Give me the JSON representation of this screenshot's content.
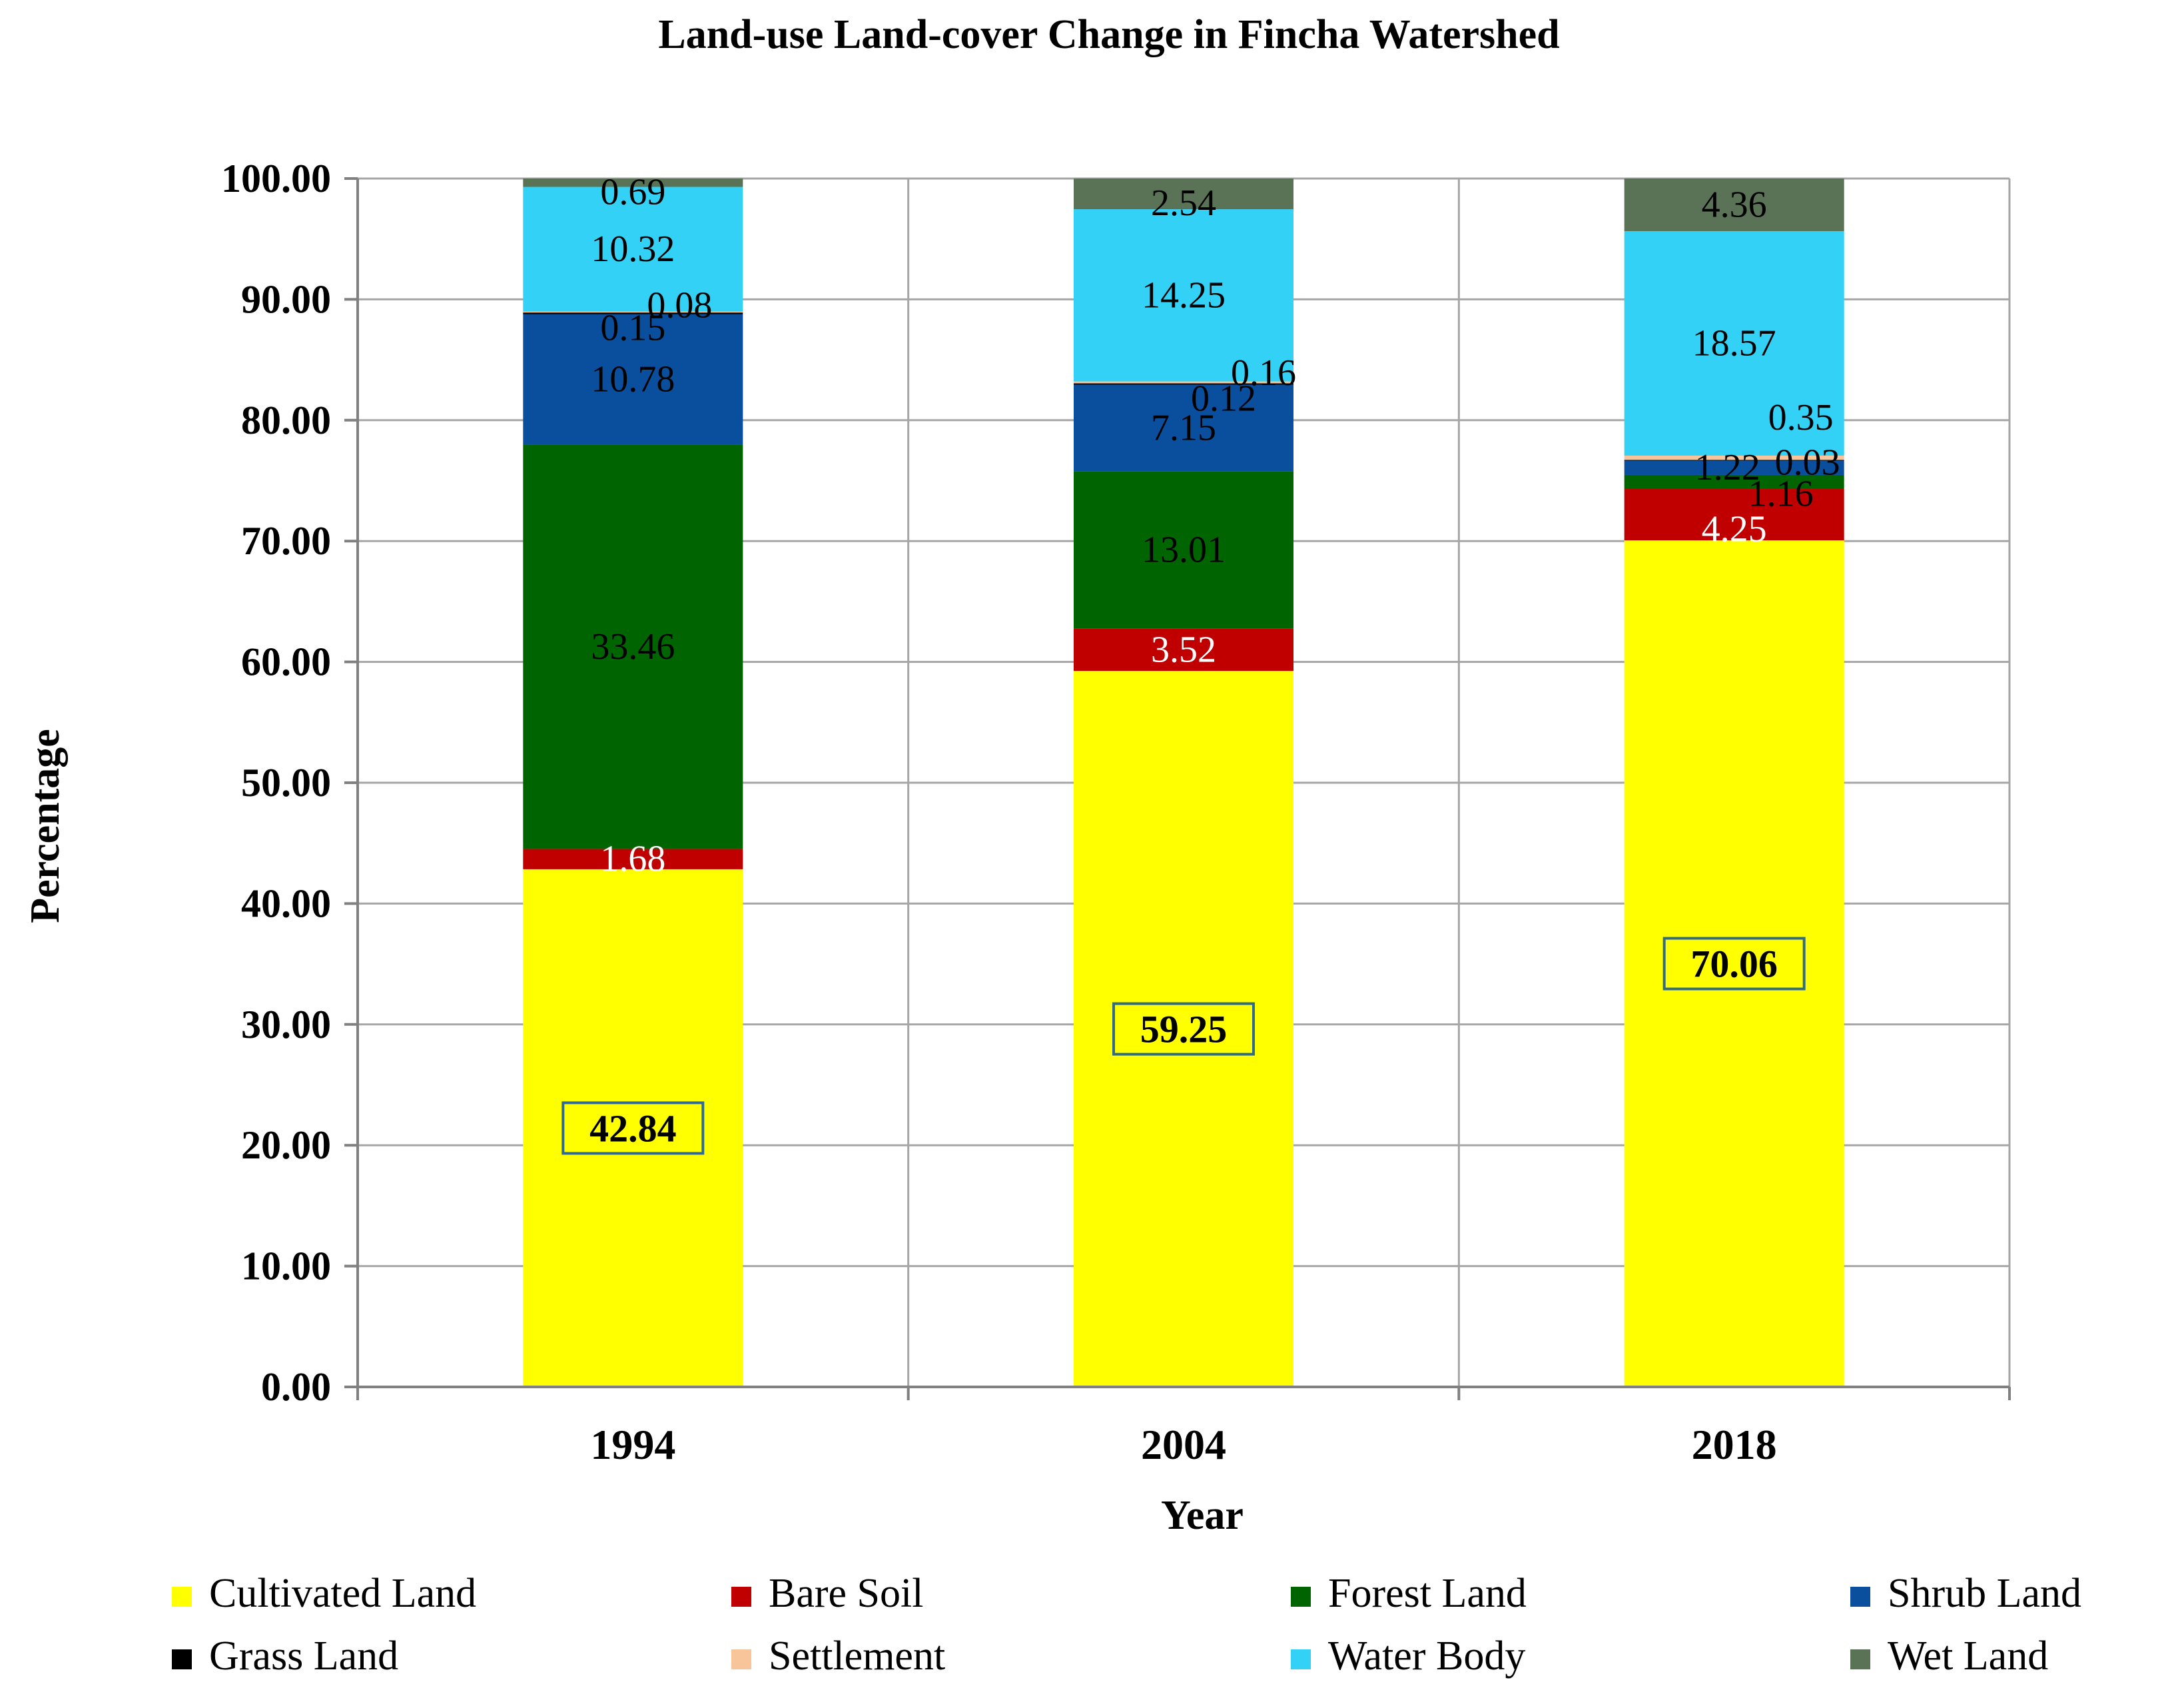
{
  "chart_data": {
    "type": "bar",
    "stacked": true,
    "title": "Land-use Land-cover Change in Fincha Watershed",
    "xlabel": "Year",
    "ylabel": "Percentage",
    "ylim": [
      0,
      100
    ],
    "yticks": [
      "0.00",
      "10.00",
      "20.00",
      "30.00",
      "40.00",
      "50.00",
      "60.00",
      "70.00",
      "80.00",
      "90.00",
      "100.00"
    ],
    "categories": [
      "1994",
      "2004",
      "2018"
    ],
    "series": [
      {
        "name": "Cultivated Land",
        "color": "#ffff00",
        "values": [
          42.84,
          59.25,
          70.06
        ],
        "labels": [
          "42.84",
          "59.25",
          "70.06"
        ],
        "label_color": "#000000"
      },
      {
        "name": "Bare Soil",
        "color": "#c00000",
        "values": [
          1.68,
          3.52,
          4.25
        ],
        "labels": [
          "1.68",
          "3.52",
          "4.25"
        ],
        "label_color": "#ffffff"
      },
      {
        "name": "Forest Land",
        "color": "#006400",
        "values": [
          33.46,
          13.01,
          1.16
        ],
        "labels": [
          "33.46",
          "13.01",
          "1.16"
        ],
        "label_color": "#000000"
      },
      {
        "name": "Shrub Land",
        "color": "#0a4f9e",
        "values": [
          10.78,
          7.15,
          1.22
        ],
        "labels": [
          "10.78",
          "7.15",
          "1.22"
        ],
        "label_color": "#000000"
      },
      {
        "name": "Grass Land",
        "color": "#000000",
        "values": [
          0.15,
          0.12,
          0.03
        ],
        "labels": [
          "0.15",
          "0.12",
          "0.03"
        ],
        "label_color": "#000000"
      },
      {
        "name": "Settlement",
        "color": "#f8c49a",
        "values": [
          0.08,
          0.16,
          0.35
        ],
        "labels": [
          "0.08",
          "0.16",
          "0.35"
        ],
        "label_color": "#000000"
      },
      {
        "name": "Water Body",
        "color": "#33d1f5",
        "values": [
          10.32,
          14.25,
          18.57
        ],
        "labels": [
          "10.32",
          "14.25",
          "18.57"
        ],
        "label_color": "#000000"
      },
      {
        "name": "Wet Land",
        "color": "#5a7256",
        "values": [
          0.69,
          2.54,
          4.36
        ],
        "labels": [
          "0.69",
          "2.54",
          "4.36"
        ],
        "label_color": "#000000"
      }
    ],
    "legend": "bottom"
  }
}
